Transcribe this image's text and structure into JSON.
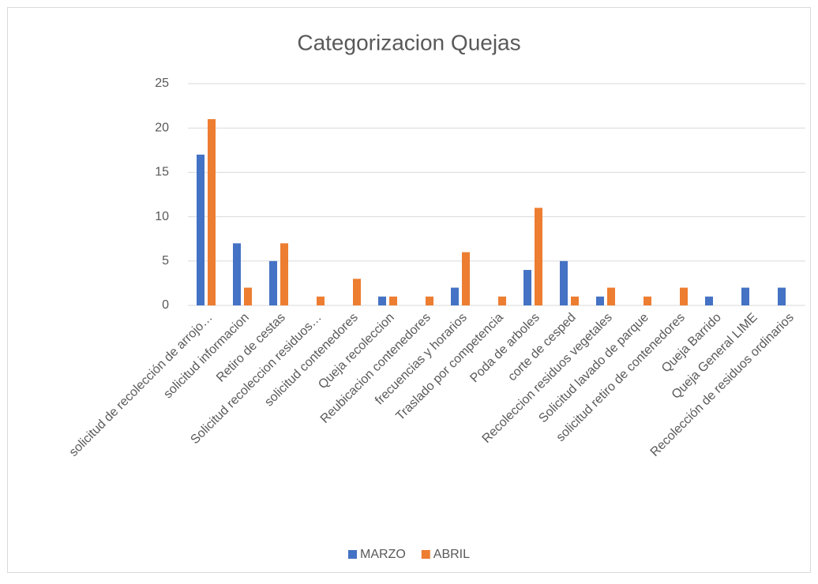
{
  "chart_data": {
    "type": "bar",
    "title": "Categorizacion Quejas",
    "categories": [
      "solicitud de recolección de arrojo…",
      "solicitud informacion",
      "Retiro de cestas",
      "Solicitud recoleccion residuos…",
      "solicitud contenedores",
      "Queja recoleccion",
      "Reubicacion contenedores",
      "frecuencias y horarios",
      "Traslado por competencia",
      "Poda de arboles",
      "corte de cesped",
      "Recoleccion residuos vegetales",
      "Solicitud lavado de parque",
      "solicitud retiro de contenedores",
      "Queja Barrido",
      "Queja General LIME",
      "Recolección de residuos ordinarios"
    ],
    "series": [
      {
        "name": "MARZO",
        "color": "#4472c4",
        "values": [
          17,
          7,
          5,
          0,
          0,
          1,
          0,
          2,
          0,
          4,
          5,
          1,
          0,
          0,
          1,
          2,
          2
        ]
      },
      {
        "name": "ABRIL",
        "color": "#ed7d31",
        "values": [
          21,
          2,
          7,
          1,
          3,
          1,
          1,
          6,
          1,
          11,
          1,
          2,
          1,
          2,
          0,
          0,
          0
        ]
      }
    ],
    "ylim": [
      0,
      25
    ],
    "yticks": [
      0,
      5,
      10,
      15,
      20,
      25
    ],
    "grid": true,
    "legend": "bottom"
  }
}
